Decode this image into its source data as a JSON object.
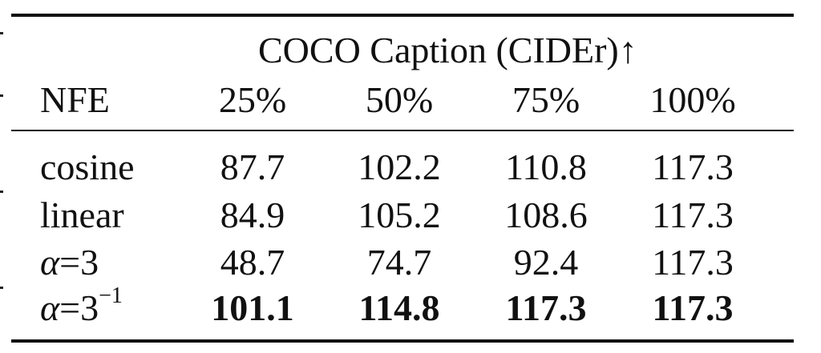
{
  "table": {
    "group_header": "COCO Caption (CIDEr)↑",
    "row_header": "NFE",
    "columns": [
      "25%",
      "50%",
      "75%",
      "100%"
    ],
    "rows": [
      {
        "label": "cosine",
        "values": [
          "87.7",
          "102.2",
          "110.8",
          "117.3"
        ],
        "bold": false
      },
      {
        "label": "linear",
        "values": [
          "84.9",
          "105.2",
          "108.6",
          "117.3"
        ],
        "bold": false
      },
      {
        "label_symbol": "α",
        "label_rest": "=3",
        "values": [
          "48.7",
          "74.7",
          "92.4",
          "117.3"
        ],
        "bold": false
      },
      {
        "label_symbol": "α",
        "label_rest": "=3",
        "label_exp": "−1",
        "values": [
          "101.1",
          "114.8",
          "117.3",
          "117.3"
        ],
        "bold": true
      }
    ]
  }
}
